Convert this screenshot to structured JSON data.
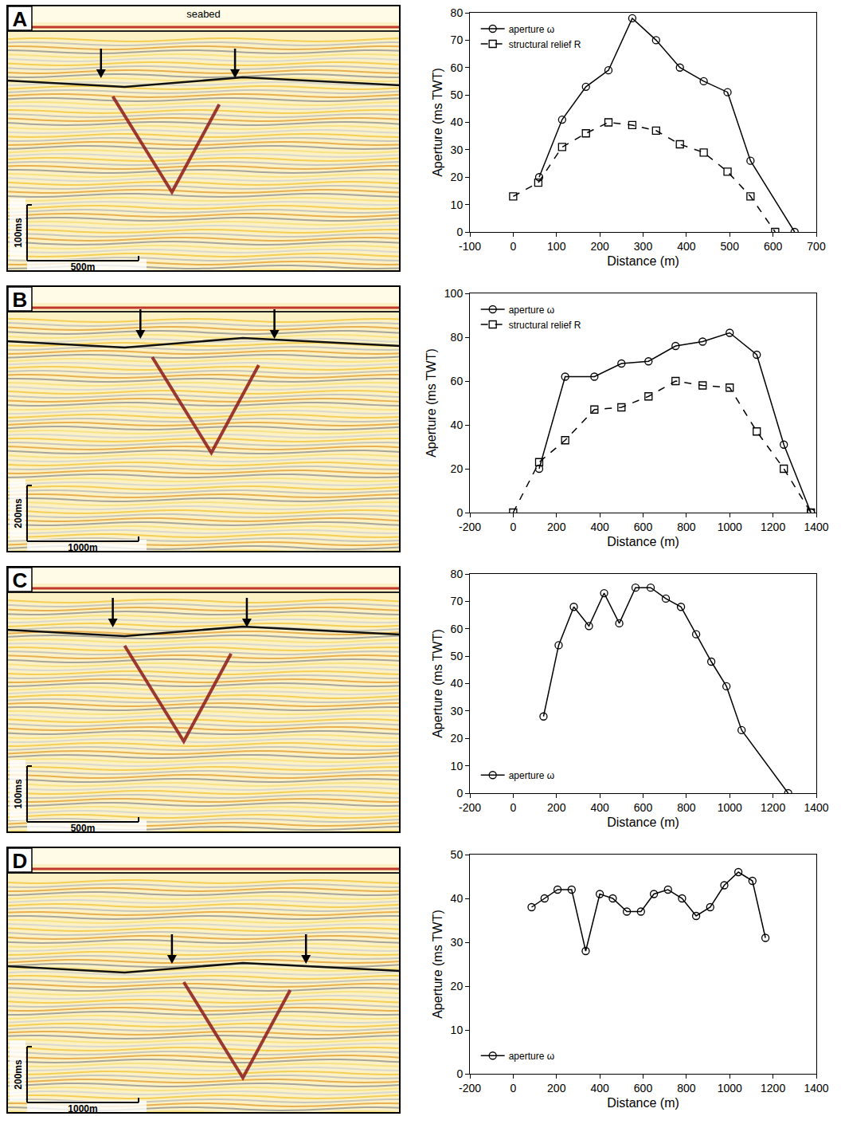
{
  "chart_data": [
    {
      "type": "line",
      "x_label": "Distance (m)",
      "y_label": "Aperture (ms TWT)",
      "xlim": [
        -100,
        700
      ],
      "xticks": [
        -100,
        0,
        100,
        200,
        300,
        400,
        500,
        600,
        700
      ],
      "ylim": [
        0,
        80
      ],
      "yticks": [
        0,
        10,
        20,
        30,
        40,
        50,
        60,
        70,
        80
      ],
      "grid": false,
      "legend": "upper left",
      "series": [
        {
          "name": "aperture ω",
          "color": "#000000",
          "marker": "circle-open",
          "line_style": "solid",
          "x": [
            60,
            113,
            168,
            220,
            275,
            330,
            385,
            440,
            495,
            548,
            650
          ],
          "values": [
            20,
            41,
            53,
            59,
            78,
            70,
            60,
            55,
            51,
            26,
            0
          ]
        },
        {
          "name": "structural relief R",
          "color": "#000000",
          "marker": "square-open",
          "line_style": "dash",
          "x": [
            0,
            58,
            113,
            168,
            220,
            275,
            330,
            385,
            440,
            495,
            548,
            605
          ],
          "values": [
            13,
            18,
            31,
            36,
            40,
            39,
            37,
            32,
            29,
            22,
            13,
            0
          ]
        }
      ]
    },
    {
      "type": "line",
      "x_label": "Distance (m)",
      "y_label": "Aperture (ms TWT)",
      "xlim": [
        -200,
        1400
      ],
      "xticks": [
        -200,
        0,
        200,
        400,
        600,
        800,
        1000,
        1200,
        1400
      ],
      "ylim": [
        0,
        100
      ],
      "yticks": [
        0,
        20,
        40,
        60,
        80,
        100
      ],
      "grid": false,
      "legend": "upper left",
      "series": [
        {
          "name": "aperture ω",
          "color": "#000000",
          "marker": "circle-open",
          "line_style": "solid",
          "x": [
            120,
            240,
            375,
            500,
            625,
            750,
            875,
            1000,
            1125,
            1250,
            1375
          ],
          "values": [
            20,
            62,
            62,
            68,
            69,
            76,
            78,
            82,
            72,
            31,
            0
          ]
        },
        {
          "name": "structural relief R",
          "color": "#000000",
          "marker": "square-open",
          "line_style": "dash",
          "x": [
            0,
            120,
            240,
            375,
            500,
            625,
            750,
            875,
            1000,
            1125,
            1250,
            1375
          ],
          "values": [
            0,
            23,
            33,
            47,
            48,
            53,
            60,
            58,
            57,
            37,
            20,
            0
          ]
        }
      ]
    },
    {
      "type": "line",
      "x_label": "Distance (m)",
      "y_label": "Aperture (ms TWT)",
      "xlim": [
        -200,
        1400
      ],
      "xticks": [
        -200,
        0,
        200,
        400,
        600,
        800,
        1000,
        1200,
        1400
      ],
      "ylim": [
        0,
        80
      ],
      "yticks": [
        0,
        10,
        20,
        30,
        40,
        50,
        60,
        70,
        80
      ],
      "grid": false,
      "legend": "lower left",
      "series": [
        {
          "name": "aperture ω",
          "color": "#000000",
          "marker": "circle-open",
          "line_style": "solid",
          "x": [
            140,
            210,
            280,
            350,
            420,
            490,
            565,
            635,
            705,
            775,
            845,
            915,
            985,
            1055,
            1270
          ],
          "values": [
            28,
            54,
            68,
            61,
            73,
            62,
            75,
            75,
            71,
            68,
            58,
            48,
            39,
            23,
            0
          ]
        }
      ]
    },
    {
      "type": "line",
      "x_label": "Distance (m)",
      "y_label": "Aperture (ms TWT)",
      "xlim": [
        -200,
        1400
      ],
      "xticks": [
        -200,
        0,
        200,
        400,
        600,
        800,
        1000,
        1200,
        1400
      ],
      "ylim": [
        0,
        50
      ],
      "yticks": [
        0,
        10,
        20,
        30,
        40,
        50
      ],
      "grid": false,
      "legend": "lower left",
      "series": [
        {
          "name": "aperture ω",
          "color": "#000000",
          "marker": "circle-open",
          "line_style": "solid",
          "x": [
            85,
            145,
            205,
            270,
            335,
            400,
            460,
            525,
            590,
            650,
            715,
            780,
            845,
            910,
            975,
            1040,
            1105,
            1165
          ],
          "values": [
            38,
            40,
            42,
            42,
            28,
            41,
            40,
            37,
            37,
            41,
            42,
            40,
            36,
            38,
            43,
            46,
            44,
            31
          ]
        }
      ]
    }
  ],
  "seismic_panels": [
    {
      "letter": "A",
      "label": "seabed",
      "scale_time": "100ms",
      "scale_distance": "500m"
    },
    {
      "letter": "B",
      "scale_time": "200ms",
      "scale_distance": "1000m"
    },
    {
      "letter": "C",
      "scale_time": "100ms",
      "scale_distance": "500m"
    },
    {
      "letter": "D",
      "scale_time": "200ms",
      "scale_distance": "1000m"
    }
  ]
}
